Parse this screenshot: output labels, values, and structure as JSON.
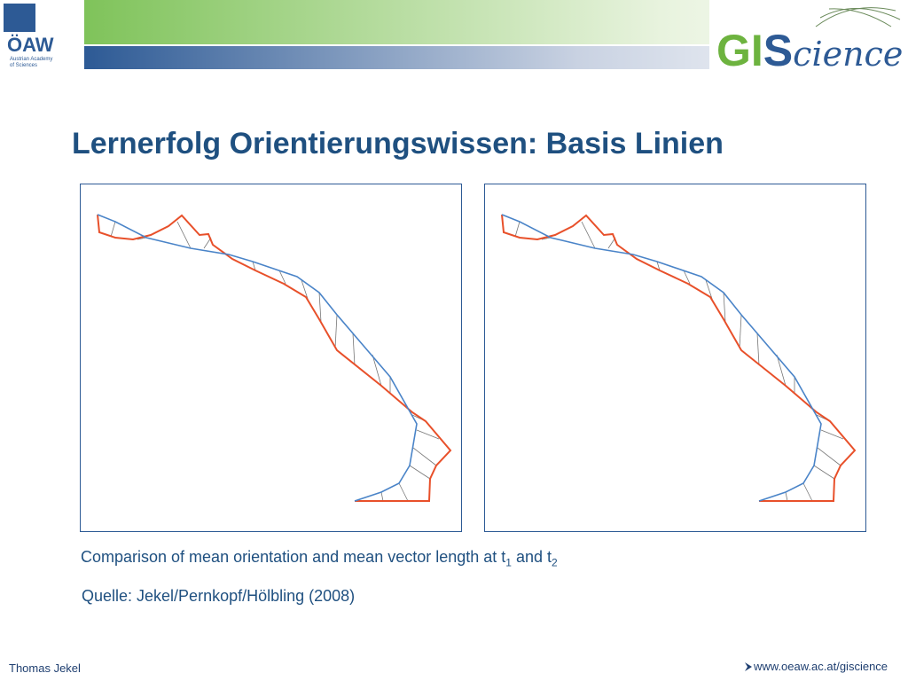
{
  "header": {
    "left_logo": {
      "name": "ÖAW",
      "subtitle_1": "Austrian Academy",
      "subtitle_2": "of Sciences"
    },
    "right_logo": {
      "gi": "GI",
      "s": "S",
      "rest": "cience"
    }
  },
  "title": "Lernerfolg Orientierungswissen: Basis Linien",
  "caption": {
    "text_1": "Comparison of mean orientation and mean vector length at t",
    "sub_1": "1",
    "text_2": " and t",
    "sub_2": "2"
  },
  "source": "Quelle: Jekel/Pernkopf/Hölbling (2008)",
  "footer": {
    "author": "Thomas Jekel",
    "link": "www.oeaw.ac.at/giscience"
  }
}
